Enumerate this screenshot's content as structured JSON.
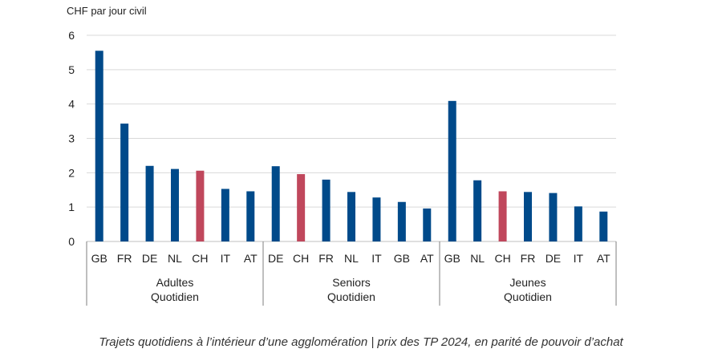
{
  "chart_data": {
    "type": "bar",
    "ylabel": "CHF par jour civil",
    "ylim": [
      0,
      6
    ],
    "yticks": [
      0,
      1,
      2,
      3,
      4,
      5,
      6
    ],
    "grid": true,
    "colors": {
      "default": "#004a8a",
      "highlight": "#c0475c"
    },
    "highlight_category": "CH",
    "groups": [
      {
        "label_line1": "Adultes",
        "label_line2": "Quotidien",
        "categories": [
          "GB",
          "FR",
          "DE",
          "NL",
          "CH",
          "IT",
          "AT"
        ],
        "values": [
          5.55,
          3.43,
          2.2,
          2.11,
          2.06,
          1.53,
          1.46
        ]
      },
      {
        "label_line1": "Seniors",
        "label_line2": "Quotidien",
        "categories": [
          "DE",
          "CH",
          "FR",
          "NL",
          "IT",
          "GB",
          "AT"
        ],
        "values": [
          2.19,
          1.96,
          1.8,
          1.44,
          1.28,
          1.15,
          0.96
        ]
      },
      {
        "label_line1": "Jeunes",
        "label_line2": "Quotidien",
        "categories": [
          "GB",
          "NL",
          "CH",
          "FR",
          "DE",
          "IT",
          "AT"
        ],
        "values": [
          4.09,
          1.78,
          1.46,
          1.44,
          1.41,
          1.02,
          0.87
        ]
      }
    ]
  },
  "caption": "Trajets quotidiens à l’intérieur d’une agglomération | prix des TP 2024, en parité de pouvoir d’achat"
}
